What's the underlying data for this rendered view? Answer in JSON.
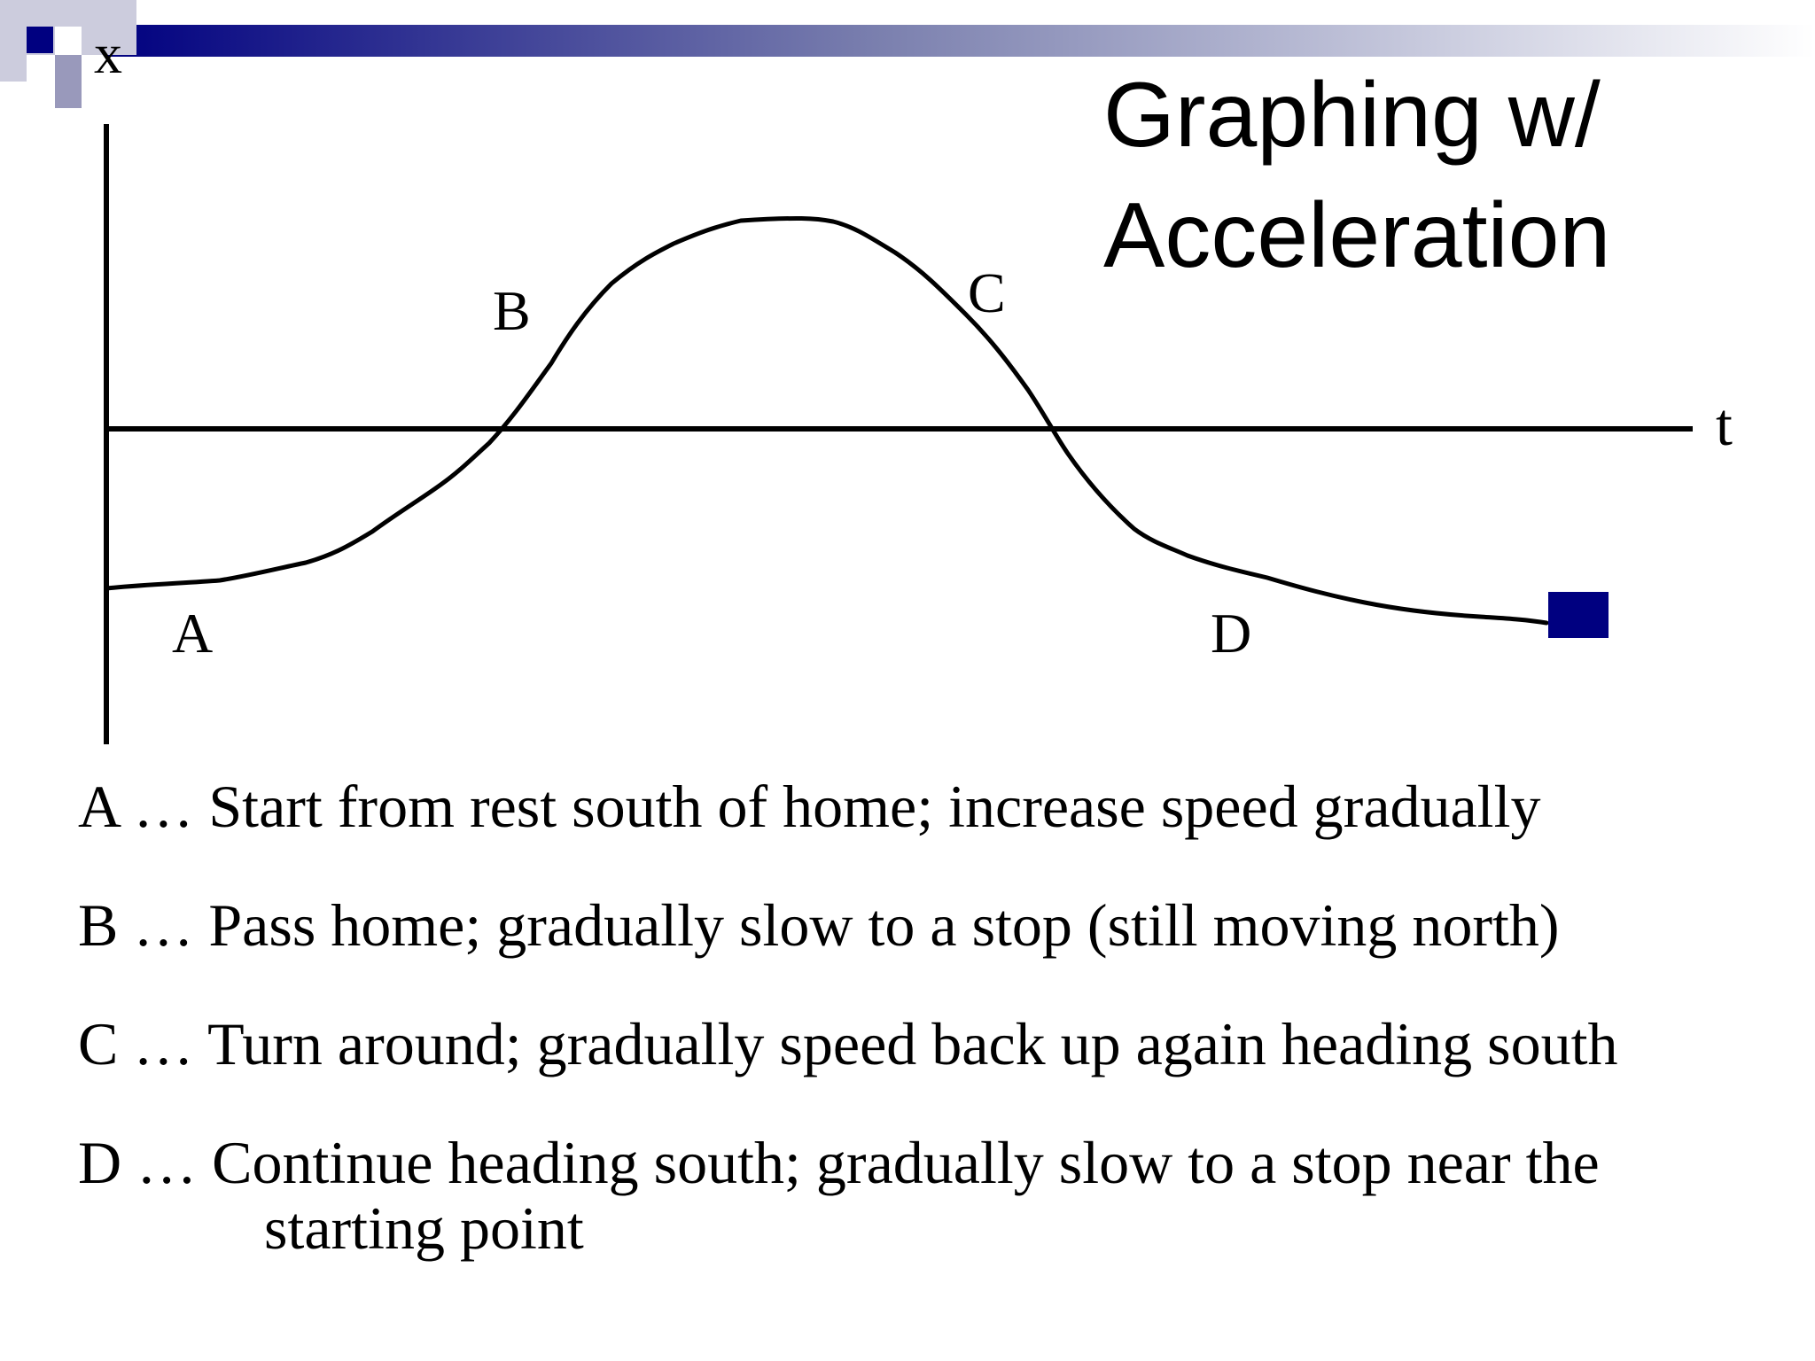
{
  "title": {
    "line1": "Graphing w/",
    "line2": "Acceleration"
  },
  "colors": {
    "accent": "#000080",
    "ink": "#000000",
    "background": "#ffffff"
  },
  "graph": {
    "x_axis_label": "x",
    "t_axis_label": "t",
    "point_labels": {
      "a": "A",
      "b": "B",
      "c": "C",
      "d": "D"
    },
    "end_marker_icon": "square-marker"
  },
  "steps": [
    {
      "text": "A … Start from rest south of home; increase speed gradually"
    },
    {
      "text": "B … Pass home; gradually slow to a stop (still moving north)"
    },
    {
      "text": "C … Turn around; gradually speed back up again heading south"
    },
    {
      "text": "D … Continue heading south; gradually slow to a stop near the",
      "continuation": "starting point"
    }
  ]
}
